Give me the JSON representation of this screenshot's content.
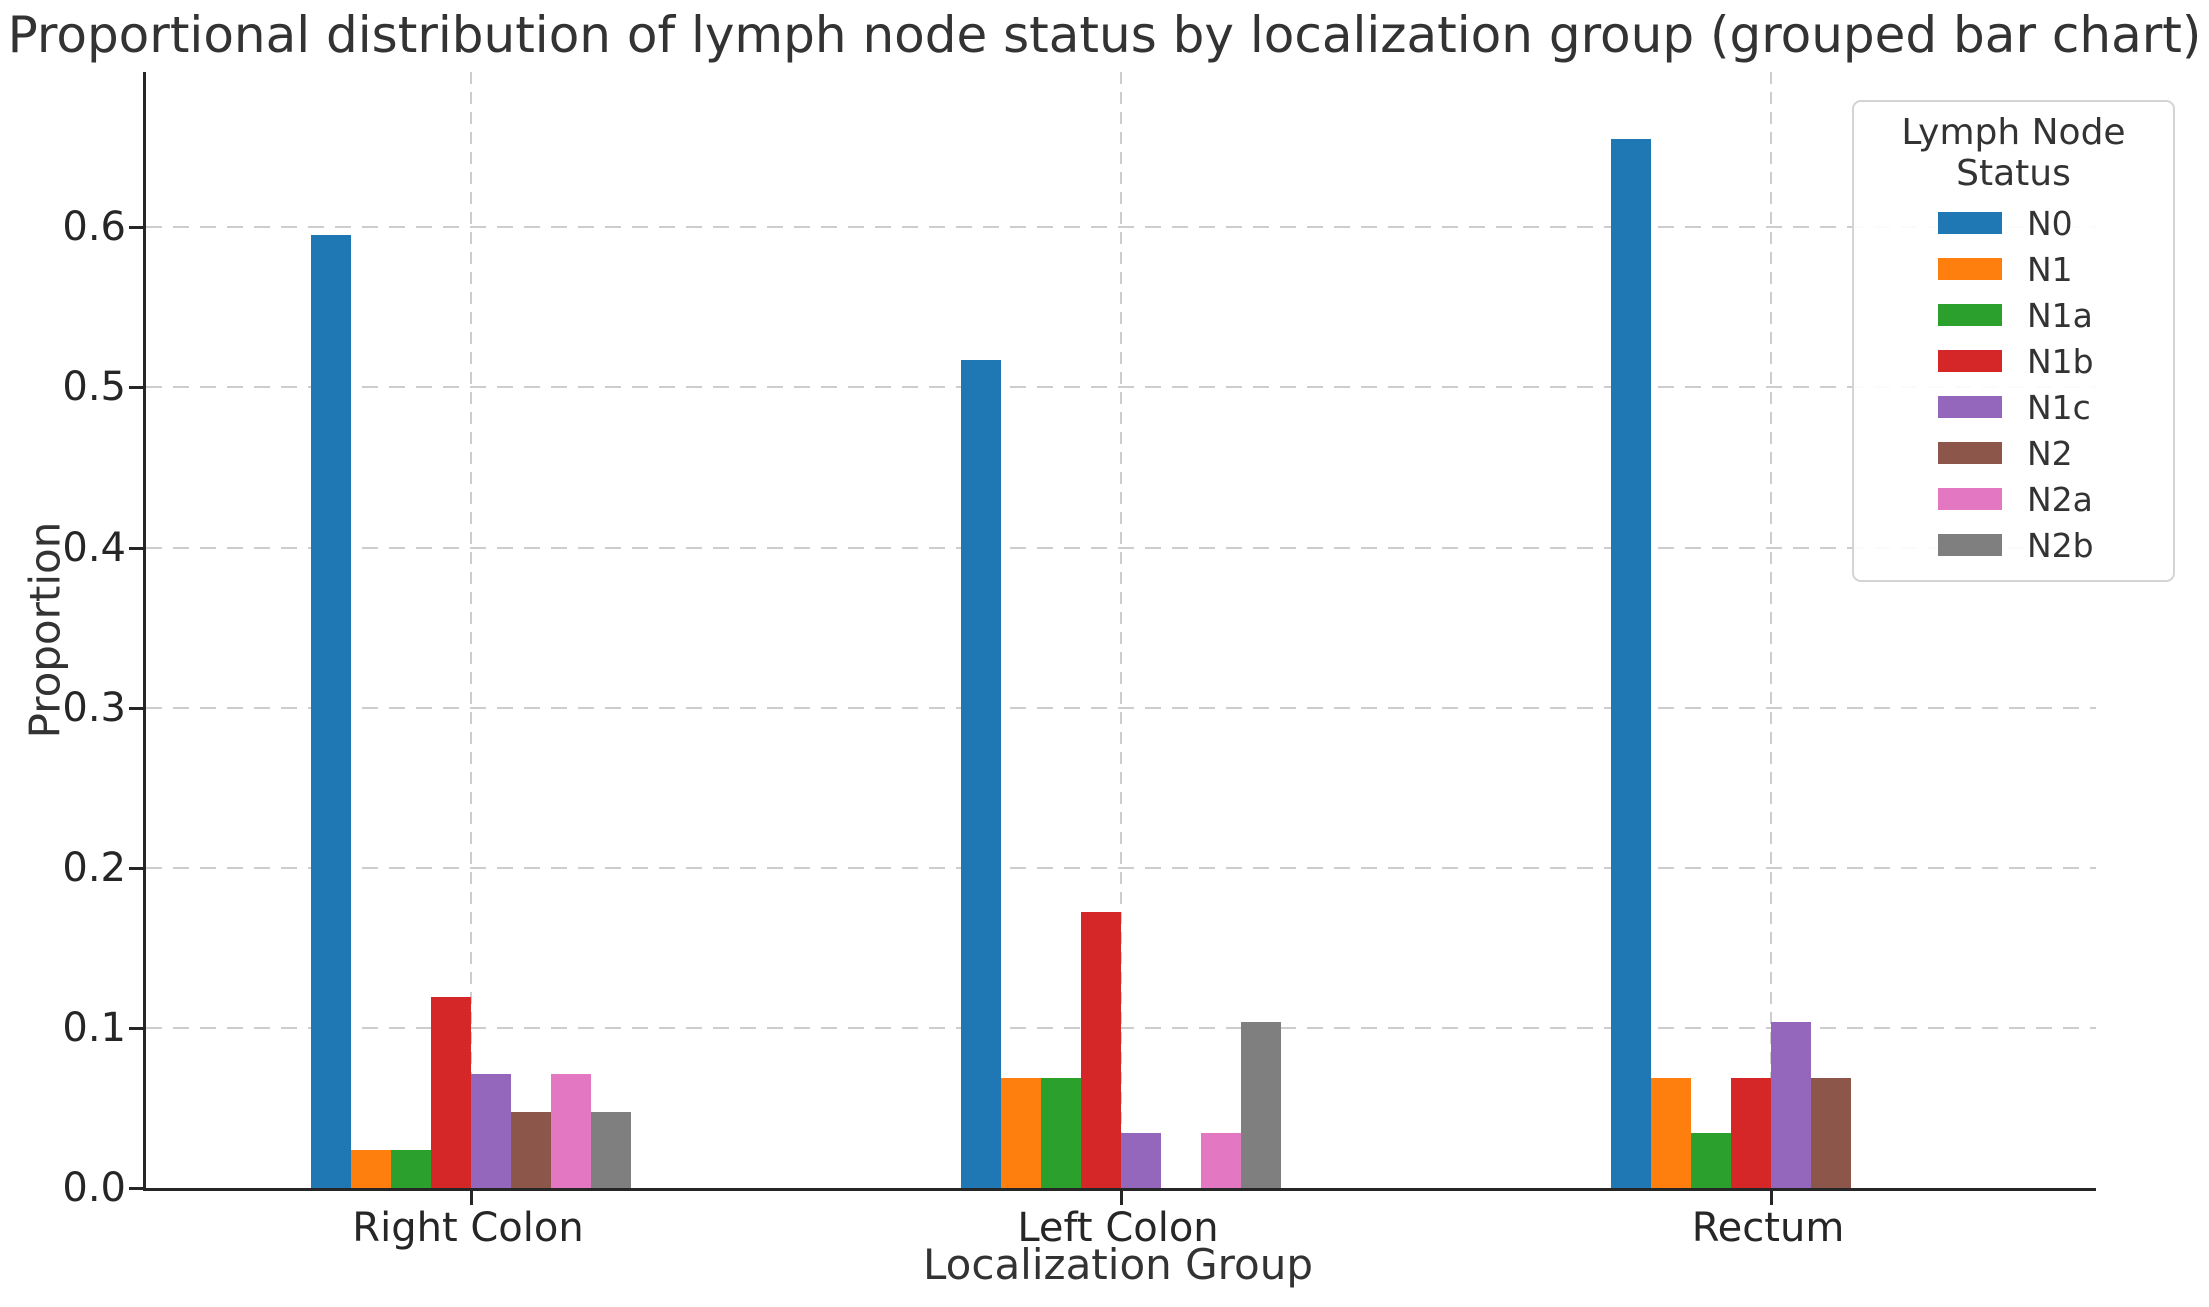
{
  "chart_data": {
    "type": "bar",
    "title": "Proportional distribution of lymph node status by localization group (grouped bar chart)",
    "xlabel": "Localization Group",
    "ylabel": "Proportion",
    "categories": [
      "Right Colon",
      "Left Colon",
      "Rectum"
    ],
    "legend_title": "Lymph Node Status",
    "legend_position": "upper right",
    "grid": true,
    "ylim": [
      0,
      0.697
    ],
    "yticks": [
      0.0,
      0.1,
      0.2,
      0.3,
      0.4,
      0.5,
      0.6
    ],
    "ytick_labels": [
      "0.0",
      "0.1",
      "0.2",
      "0.3",
      "0.4",
      "0.5",
      "0.6"
    ],
    "series": [
      {
        "name": "N0",
        "color": "#1f77b4",
        "values": [
          0.5952,
          0.5172,
          0.6552
        ]
      },
      {
        "name": "N1",
        "color": "#ff7f0e",
        "values": [
          0.0238,
          0.069,
          0.069
        ]
      },
      {
        "name": "N1a",
        "color": "#2ca02c",
        "values": [
          0.0238,
          0.069,
          0.0345
        ]
      },
      {
        "name": "N1b",
        "color": "#d62728",
        "values": [
          0.119,
          0.1724,
          0.069
        ]
      },
      {
        "name": "N1c",
        "color": "#9467bd",
        "values": [
          0.0714,
          0.0345,
          0.1034
        ]
      },
      {
        "name": "N2",
        "color": "#8c564b",
        "values": [
          0.0476,
          0.0,
          0.069
        ]
      },
      {
        "name": "N2a",
        "color": "#e377c2",
        "values": [
          0.0714,
          0.0345,
          0.0
        ]
      },
      {
        "name": "N2b",
        "color": "#7f7f7f",
        "values": [
          0.0476,
          0.1034,
          0.0
        ]
      }
    ],
    "style": {
      "background": "#ffffff",
      "text_color": "#333333",
      "tick_color": "#262626",
      "grid_color": "#cdcdcd",
      "spine_color": "#262626"
    }
  }
}
